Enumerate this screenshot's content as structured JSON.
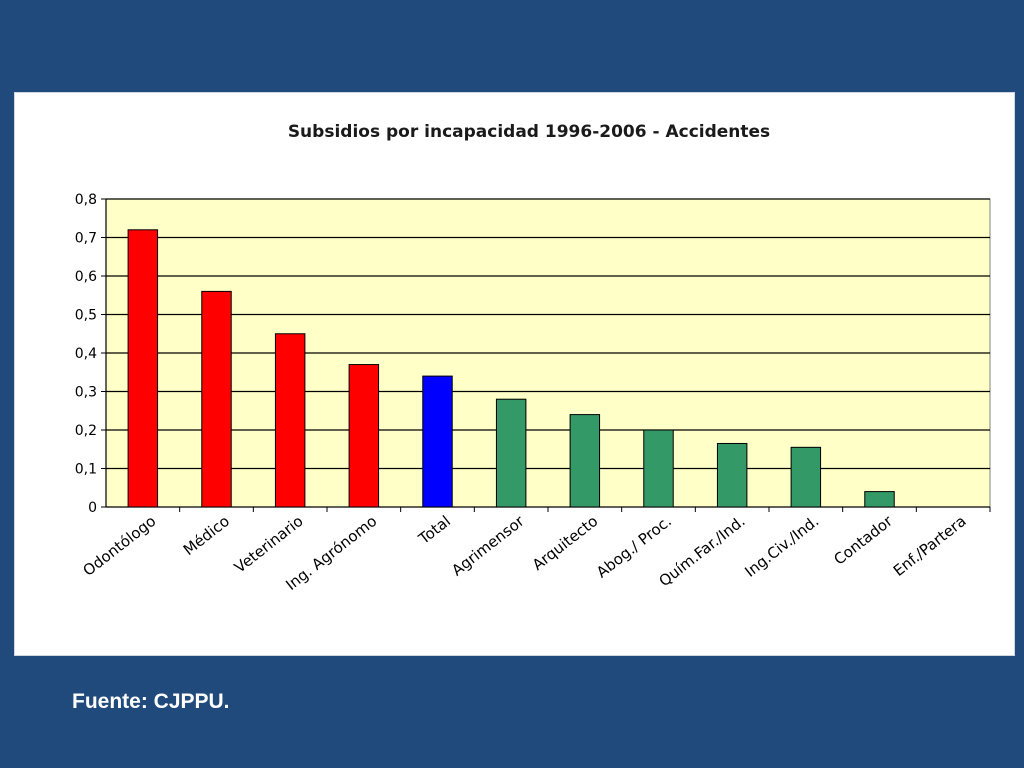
{
  "source_note": "Fuente: CJPPU.",
  "colors": {
    "background": "#204a7c",
    "plot_area": "#ffffc8",
    "red": "#ff0000",
    "blue": "#0000ff",
    "green": "#339966"
  },
  "chart_data": {
    "type": "bar",
    "title": "Subsidios por incapacidad 1996-2006 - Accidentes",
    "xlabel": "",
    "ylabel": "",
    "ylim": [
      0,
      0.8
    ],
    "yticks": [
      "0",
      "0,1",
      "0,2",
      "0,3",
      "0,4",
      "0,5",
      "0,6",
      "0,7",
      "0,8"
    ],
    "grid": true,
    "legend": "none",
    "categories": [
      "Odontólogo",
      "Médico",
      "Veterinario",
      "Ing. Agrónomo",
      "Total",
      "Agrimensor",
      "Arquitecto",
      "Abog./ Proc.",
      "Quím.Far./Ind.",
      "Ing.Civ./Ind.",
      "Contador",
      "Enf./Partera"
    ],
    "values": [
      0.72,
      0.56,
      0.45,
      0.37,
      0.34,
      0.28,
      0.24,
      0.2,
      0.165,
      0.155,
      0.04,
      0
    ],
    "bar_colors": [
      "red",
      "red",
      "red",
      "red",
      "blue",
      "green",
      "green",
      "green",
      "green",
      "green",
      "green",
      "green"
    ]
  }
}
